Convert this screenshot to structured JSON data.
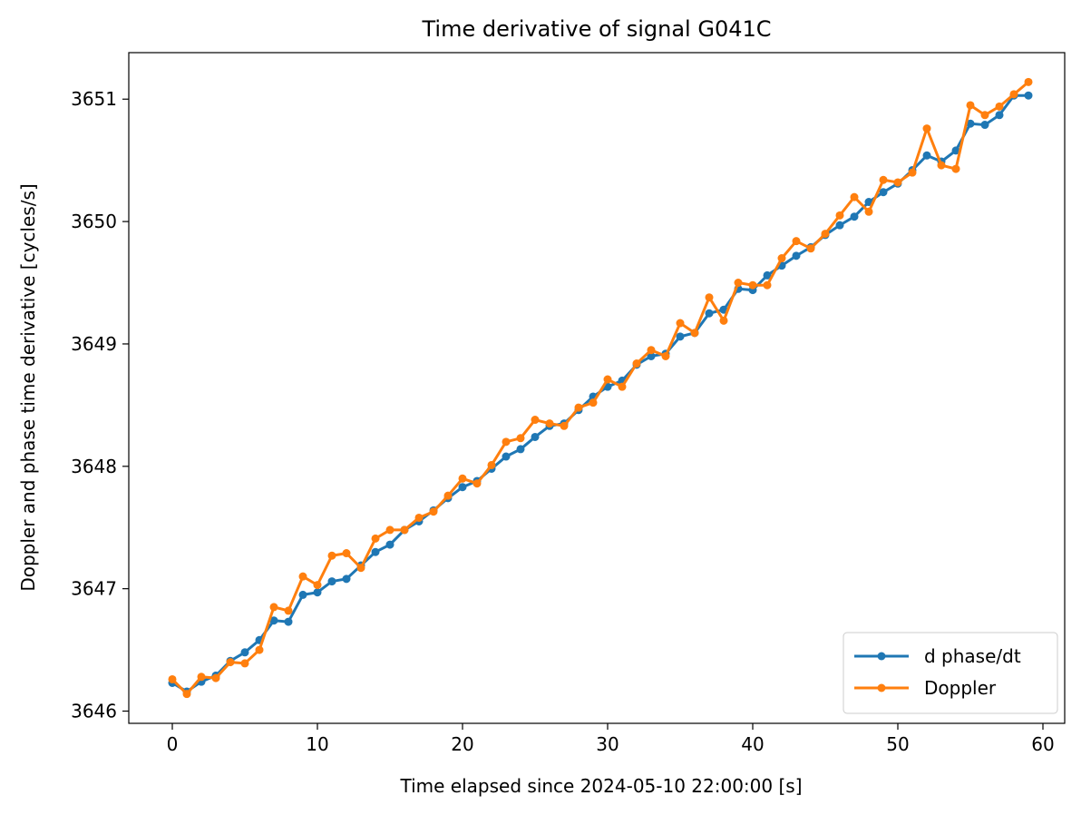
{
  "chart_data": {
    "type": "line",
    "title": "Time derivative of signal G041C",
    "xlabel": "Time elapsed since 2024-05-10 22:00:00 [s]",
    "ylabel": "Doppler and phase time derivative [cycles/s]",
    "xlim": [
      -3,
      61.5
    ],
    "ylim": [
      3645.9,
      3651.38
    ],
    "xticks": [
      0,
      10,
      20,
      30,
      40,
      50,
      60
    ],
    "yticks": [
      3646,
      3647,
      3648,
      3649,
      3650,
      3651
    ],
    "grid": false,
    "legend_position": "lower-right",
    "x": [
      0,
      1,
      2,
      3,
      4,
      5,
      6,
      7,
      8,
      9,
      10,
      11,
      12,
      13,
      14,
      15,
      16,
      17,
      18,
      19,
      20,
      21,
      22,
      23,
      24,
      25,
      26,
      27,
      28,
      29,
      30,
      31,
      32,
      33,
      34,
      35,
      36,
      37,
      38,
      39,
      40,
      41,
      42,
      43,
      44,
      45,
      46,
      47,
      48,
      49,
      50,
      51,
      52,
      53,
      54,
      55,
      56,
      57,
      58,
      59
    ],
    "series": [
      {
        "name": "d phase/dt",
        "color": "#1f77b4",
        "values": [
          3646.23,
          3646.16,
          3646.24,
          3646.29,
          3646.41,
          3646.48,
          3646.58,
          3646.74,
          3646.73,
          3646.95,
          3646.97,
          3647.06,
          3647.08,
          3647.19,
          3647.3,
          3647.36,
          3647.48,
          3647.55,
          3647.64,
          3647.74,
          3647.83,
          3647.88,
          3647.98,
          3648.08,
          3648.14,
          3648.24,
          3648.33,
          3648.35,
          3648.46,
          3648.57,
          3648.65,
          3648.7,
          3648.83,
          3648.9,
          3648.92,
          3649.06,
          3649.09,
          3649.25,
          3649.28,
          3649.45,
          3649.44,
          3649.56,
          3649.64,
          3649.72,
          3649.79,
          3649.89,
          3649.97,
          3650.04,
          3650.16,
          3650.24,
          3650.31,
          3650.42,
          3650.54,
          3650.49,
          3650.58,
          3650.8,
          3650.79,
          3650.87,
          3651.03,
          3651.03
        ]
      },
      {
        "name": "Doppler",
        "color": "#ff7f0e",
        "values": [
          3646.26,
          3646.14,
          3646.28,
          3646.27,
          3646.4,
          3646.39,
          3646.5,
          3646.85,
          3646.82,
          3647.1,
          3647.03,
          3647.27,
          3647.29,
          3647.17,
          3647.41,
          3647.48,
          3647.48,
          3647.58,
          3647.63,
          3647.76,
          3647.9,
          3647.86,
          3648.01,
          3648.2,
          3648.23,
          3648.38,
          3648.35,
          3648.33,
          3648.48,
          3648.52,
          3648.71,
          3648.65,
          3648.84,
          3648.95,
          3648.9,
          3649.17,
          3649.09,
          3649.38,
          3649.19,
          3649.5,
          3649.48,
          3649.48,
          3649.7,
          3649.84,
          3649.78,
          3649.9,
          3650.05,
          3650.2,
          3650.08,
          3650.34,
          3650.32,
          3650.4,
          3650.76,
          3650.46,
          3650.43,
          3650.95,
          3650.87,
          3650.94,
          3651.04,
          3651.14
        ]
      }
    ]
  }
}
